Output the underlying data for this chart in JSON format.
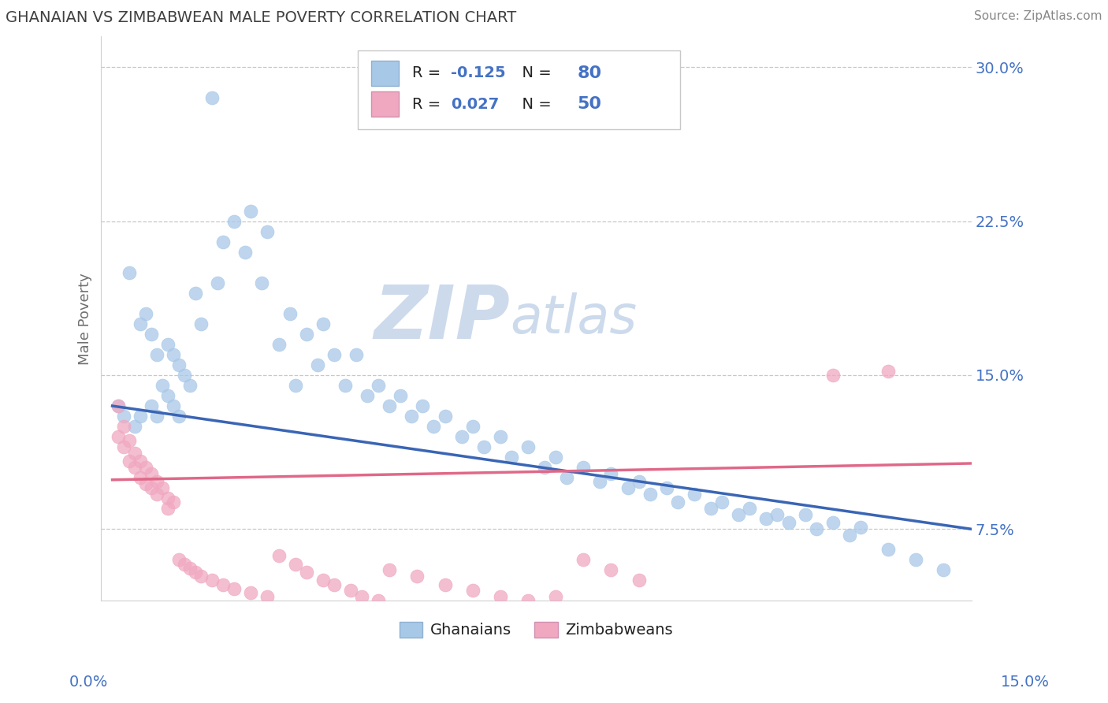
{
  "title": "GHANAIAN VS ZIMBABWEAN MALE POVERTY CORRELATION CHART",
  "source": "Source: ZipAtlas.com",
  "ylabel": "Male Poverty",
  "xlim": [
    -0.002,
    0.155
  ],
  "ylim": [
    0.04,
    0.315
  ],
  "yticks": [
    0.075,
    0.15,
    0.225,
    0.3
  ],
  "ytick_labels": [
    "7.5%",
    "15.0%",
    "22.5%",
    "30.0%"
  ],
  "ghanaian_color": "#a8c8e8",
  "zimbabwean_color": "#f0a8c0",
  "ghanaian_line_color": "#3a65b5",
  "zimbabwean_line_color": "#e06888",
  "R_ghanaian": -0.125,
  "N_ghanaian": 80,
  "R_zimbabwean": 0.027,
  "N_zimbabwean": 50,
  "watermark_zip": "ZIP",
  "watermark_atlas": "atlas",
  "watermark_color": "#ccdaec",
  "background_color": "#ffffff",
  "grid_color": "#c8c8c8",
  "title_color": "#404040",
  "axis_label_color": "#707070",
  "tick_color": "#4472c4",
  "source_color": "#888888",
  "ghanaian_x": [
    0.001,
    0.002,
    0.003,
    0.004,
    0.005,
    0.005,
    0.006,
    0.007,
    0.007,
    0.008,
    0.008,
    0.009,
    0.01,
    0.01,
    0.011,
    0.011,
    0.012,
    0.012,
    0.013,
    0.014,
    0.015,
    0.016,
    0.018,
    0.019,
    0.02,
    0.022,
    0.024,
    0.025,
    0.027,
    0.028,
    0.03,
    0.032,
    0.033,
    0.035,
    0.037,
    0.038,
    0.04,
    0.042,
    0.044,
    0.046,
    0.048,
    0.05,
    0.052,
    0.054,
    0.056,
    0.058,
    0.06,
    0.063,
    0.065,
    0.067,
    0.07,
    0.072,
    0.075,
    0.078,
    0.08,
    0.082,
    0.085,
    0.088,
    0.09,
    0.093,
    0.095,
    0.097,
    0.1,
    0.102,
    0.105,
    0.108,
    0.11,
    0.113,
    0.115,
    0.118,
    0.12,
    0.122,
    0.125,
    0.127,
    0.13,
    0.133,
    0.135,
    0.14,
    0.145,
    0.15
  ],
  "ghanaian_y": [
    0.135,
    0.13,
    0.2,
    0.125,
    0.175,
    0.13,
    0.18,
    0.17,
    0.135,
    0.16,
    0.13,
    0.145,
    0.165,
    0.14,
    0.16,
    0.135,
    0.155,
    0.13,
    0.15,
    0.145,
    0.19,
    0.175,
    0.285,
    0.195,
    0.215,
    0.225,
    0.21,
    0.23,
    0.195,
    0.22,
    0.165,
    0.18,
    0.145,
    0.17,
    0.155,
    0.175,
    0.16,
    0.145,
    0.16,
    0.14,
    0.145,
    0.135,
    0.14,
    0.13,
    0.135,
    0.125,
    0.13,
    0.12,
    0.125,
    0.115,
    0.12,
    0.11,
    0.115,
    0.105,
    0.11,
    0.1,
    0.105,
    0.098,
    0.102,
    0.095,
    0.098,
    0.092,
    0.095,
    0.088,
    0.092,
    0.085,
    0.088,
    0.082,
    0.085,
    0.08,
    0.082,
    0.078,
    0.082,
    0.075,
    0.078,
    0.072,
    0.076,
    0.065,
    0.06,
    0.055
  ],
  "zimbabwean_x": [
    0.001,
    0.001,
    0.002,
    0.002,
    0.003,
    0.003,
    0.004,
    0.004,
    0.005,
    0.005,
    0.006,
    0.006,
    0.007,
    0.007,
    0.008,
    0.008,
    0.009,
    0.01,
    0.01,
    0.011,
    0.012,
    0.013,
    0.014,
    0.015,
    0.016,
    0.018,
    0.02,
    0.022,
    0.025,
    0.028,
    0.03,
    0.033,
    0.035,
    0.038,
    0.04,
    0.043,
    0.045,
    0.048,
    0.05,
    0.055,
    0.06,
    0.065,
    0.07,
    0.075,
    0.08,
    0.085,
    0.09,
    0.095,
    0.13,
    0.14
  ],
  "zimbabwean_y": [
    0.135,
    0.12,
    0.125,
    0.115,
    0.118,
    0.108,
    0.112,
    0.105,
    0.108,
    0.1,
    0.105,
    0.097,
    0.102,
    0.095,
    0.098,
    0.092,
    0.095,
    0.09,
    0.085,
    0.088,
    0.06,
    0.058,
    0.056,
    0.054,
    0.052,
    0.05,
    0.048,
    0.046,
    0.044,
    0.042,
    0.062,
    0.058,
    0.054,
    0.05,
    0.048,
    0.045,
    0.042,
    0.04,
    0.055,
    0.052,
    0.048,
    0.045,
    0.042,
    0.04,
    0.042,
    0.06,
    0.055,
    0.05,
    0.15,
    0.152
  ]
}
